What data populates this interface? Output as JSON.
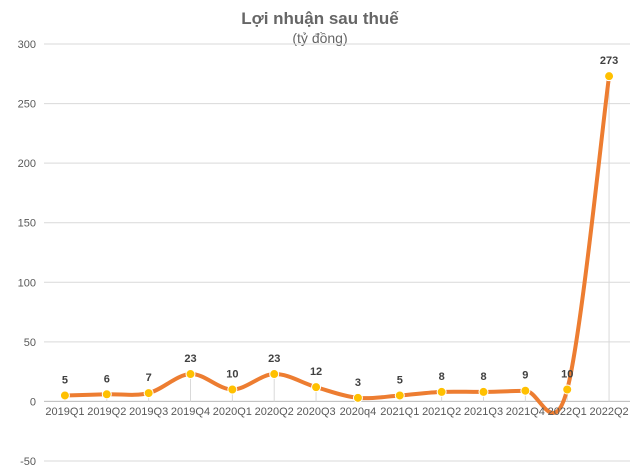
{
  "chart_data": {
    "type": "line",
    "title": "Lợi nhuận sau thuế",
    "subtitle": "(tỷ đồng)",
    "xlabel": "",
    "ylabel": "",
    "categories": [
      "2019Q1",
      "2019Q2",
      "2019Q3",
      "2019Q4",
      "2020Q1",
      "2020Q2",
      "2020Q3",
      "2020q4",
      "2021Q1",
      "2021Q2",
      "2021Q3",
      "2021Q4",
      "2022Q1",
      "2022Q2"
    ],
    "series": [
      {
        "values": [
          5,
          6,
          7,
          23,
          10,
          23,
          12,
          3,
          5,
          8,
          8,
          9,
          10,
          273
        ]
      }
    ],
    "ylim": [
      -50,
      300
    ],
    "yticks": [
      "-50",
      "0",
      "50",
      "100",
      "150",
      "200",
      "250",
      "300"
    ],
    "grid": true,
    "smooth": true,
    "line_color": "#ED7D31",
    "marker_color": "#FFC000",
    "gridline_color": "#D9D9D9"
  }
}
